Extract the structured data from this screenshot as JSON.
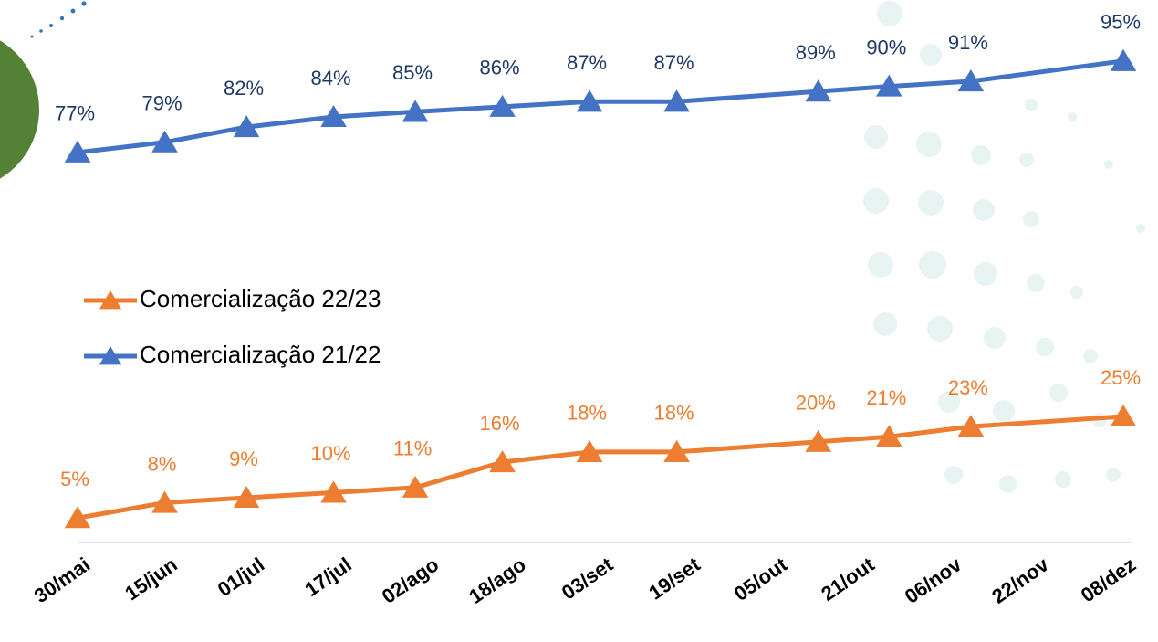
{
  "chart_data": {
    "type": "line",
    "x": [
      0,
      16,
      31,
      47,
      62,
      78,
      94,
      110,
      136,
      149,
      164,
      192
    ],
    "xlim": [
      0,
      192
    ],
    "xticks": [
      {
        "value": 0,
        "label": "30/mai"
      },
      {
        "value": 16,
        "label": "15/jun"
      },
      {
        "value": 32,
        "label": "01/jul"
      },
      {
        "value": 48,
        "label": "17/jul"
      },
      {
        "value": 64,
        "label": "02/ago"
      },
      {
        "value": 80,
        "label": "18/ago"
      },
      {
        "value": 96,
        "label": "03/set"
      },
      {
        "value": 112,
        "label": "19/set"
      },
      {
        "value": 128,
        "label": "05/out"
      },
      {
        "value": 144,
        "label": "21/out"
      },
      {
        "value": 160,
        "label": "06/nov"
      },
      {
        "value": 176,
        "label": "22/nov"
      },
      {
        "value": 192,
        "label": "08/dez"
      }
    ],
    "ylim": [
      0,
      100
    ],
    "series": [
      {
        "name": "Comercialização 22/23",
        "color": "#ed7d31",
        "values": [
          5,
          8,
          9,
          10,
          11,
          16,
          18,
          18,
          20,
          21,
          23,
          25
        ],
        "value_labels": [
          "5%",
          "8%",
          "9%",
          "10%",
          "11%",
          "16%",
          "18%",
          "18%",
          "20%",
          "21%",
          "23%",
          "25%"
        ]
      },
      {
        "name": "Comercialização 21/22",
        "color": "#4472c4",
        "values": [
          77,
          79,
          82,
          84,
          85,
          86,
          87,
          87,
          89,
          90,
          91,
          95
        ],
        "value_labels": [
          "77%",
          "79%",
          "82%",
          "84%",
          "85%",
          "86%",
          "87%",
          "87%",
          "89%",
          "90%",
          "91%",
          "95%"
        ],
        "label_color": "#1f3864"
      }
    ],
    "legend": "left"
  }
}
